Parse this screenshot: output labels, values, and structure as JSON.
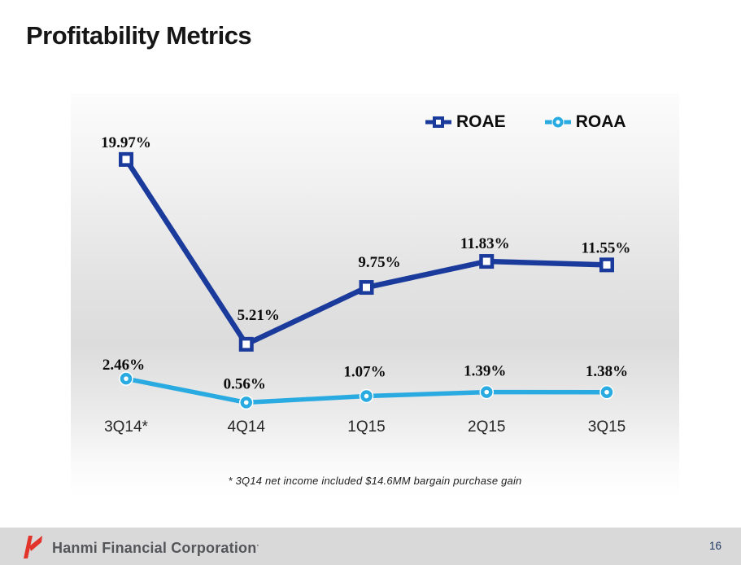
{
  "slide": {
    "title": "Profitability Metrics",
    "page_number": "16"
  },
  "footer": {
    "brand": "Hanmi Financial Corporation",
    "trademark_mark": "·"
  },
  "colors": {
    "roae_navy": "#1A3A9C",
    "roaa_blue": "#29ABE2",
    "footer_bar": "#D9D9D9",
    "logo_red": "#E2342B",
    "page_number_text": "#1F3864",
    "title_text": "#161616",
    "data_label_text": "#0d0d0d"
  },
  "chart_data": {
    "type": "line",
    "title": "Profitability Metrics",
    "categories": [
      "3Q14*",
      "4Q14",
      "1Q15",
      "2Q15",
      "3Q15"
    ],
    "series": [
      {
        "name": "ROAE",
        "marker": "square",
        "color": "#1A3A9C",
        "values": [
          19.97,
          5.21,
          9.75,
          11.83,
          11.55
        ],
        "point_labels": [
          "19.97%",
          "5.21%",
          "9.75%",
          "11.83%",
          "11.55%"
        ]
      },
      {
        "name": "ROAA",
        "marker": "circle",
        "color": "#29ABE2",
        "values": [
          2.46,
          0.56,
          1.07,
          1.39,
          1.38
        ],
        "point_labels": [
          "2.46%",
          "0.56%",
          "1.07%",
          "1.39%",
          "1.38%"
        ]
      }
    ],
    "unit": "%",
    "ylim": [
      0,
      24
    ],
    "grid": false,
    "axes_visible": false,
    "legend_position": "top-right-inside",
    "annotation": "*  3Q14 net income included $14.6MM bargain purchase gain"
  }
}
